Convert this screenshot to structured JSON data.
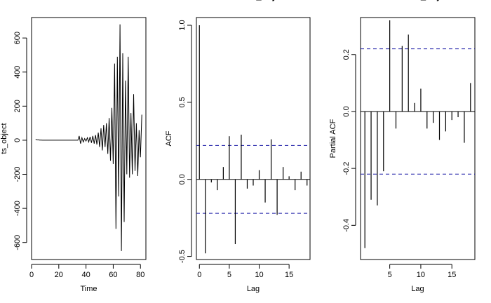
{
  "chart_data": [
    {
      "type": "line",
      "title": "",
      "xlabel": "Time",
      "ylabel": "ts_object",
      "xlim": [
        0,
        84
      ],
      "ylim": [
        -700,
        720
      ],
      "x_ticks": [
        0,
        20,
        40,
        60,
        80
      ],
      "y_ticks": [
        -600,
        -400,
        -200,
        0,
        200,
        400,
        600
      ],
      "series": [
        {
          "x": [
            3,
            4,
            5,
            6,
            7,
            8,
            9,
            10,
            11,
            12,
            13,
            14,
            15,
            16,
            17,
            18,
            19,
            20,
            21,
            22,
            23,
            24,
            25,
            26,
            27,
            28,
            29,
            30,
            31,
            32,
            33,
            34,
            35,
            36,
            37,
            38,
            39,
            40,
            41,
            42,
            43,
            44,
            45,
            46,
            47,
            48,
            49,
            50,
            51,
            52,
            53,
            54,
            55,
            56,
            57,
            58,
            59,
            60,
            61,
            62,
            63,
            64,
            65,
            66,
            67,
            68,
            69,
            70,
            71,
            72,
            73,
            74,
            75,
            76,
            77,
            78,
            79,
            80,
            81
          ],
          "y": [
            5,
            3,
            2,
            1,
            1,
            0,
            0,
            0,
            0,
            0,
            0,
            0,
            0,
            0,
            0,
            0,
            0,
            0,
            0,
            0,
            0,
            0,
            0,
            0,
            0,
            0,
            0,
            0,
            0,
            0,
            0,
            0,
            25,
            -20,
            15,
            -10,
            10,
            -5,
            15,
            -10,
            20,
            -15,
            25,
            -20,
            30,
            -25,
            45,
            -40,
            70,
            -60,
            90,
            -40,
            100,
            -80,
            130,
            -120,
            190,
            -140,
            450,
            -520,
            490,
            -330,
            680,
            -650,
            510,
            -480,
            350,
            -200,
            490,
            -220,
            160,
            -200,
            270,
            -180,
            100,
            -210,
            60,
            -100,
            150
          ]
        }
      ]
    },
    {
      "type": "bar",
      "title": "Series ts_object",
      "xlabel": "Lag",
      "ylabel": "ACF",
      "xlim": [
        -0.5,
        18.5
      ],
      "ylim": [
        -0.52,
        1.05
      ],
      "x_ticks": [
        0,
        5,
        10,
        15
      ],
      "y_ticks": [
        -0.5,
        0.0,
        0.5,
        1.0
      ],
      "confidence_bound": 0.22,
      "lags": [
        0,
        1,
        2,
        3,
        4,
        5,
        6,
        7,
        8,
        9,
        10,
        11,
        12,
        13,
        14,
        15,
        16,
        17,
        18
      ],
      "values": [
        1.0,
        -0.48,
        -0.02,
        -0.07,
        0.08,
        0.28,
        -0.42,
        0.29,
        -0.06,
        -0.04,
        0.06,
        -0.15,
        0.26,
        -0.23,
        0.08,
        0.02,
        -0.07,
        0.05,
        -0.04
      ]
    },
    {
      "type": "bar",
      "title": "Series ts_object",
      "xlabel": "Lag",
      "ylabel": "Partial ACF",
      "xlim": [
        0.3,
        18.7
      ],
      "ylim": [
        -0.52,
        0.33
      ],
      "x_ticks": [
        5,
        10,
        15
      ],
      "y_ticks": [
        -0.4,
        -0.2,
        0.0,
        0.2
      ],
      "confidence_bound": 0.22,
      "lags": [
        1,
        2,
        3,
        4,
        5,
        6,
        7,
        8,
        9,
        10,
        11,
        12,
        13,
        14,
        15,
        16,
        17,
        18
      ],
      "values": [
        -0.48,
        -0.31,
        -0.33,
        -0.21,
        0.32,
        -0.06,
        0.23,
        0.27,
        0.03,
        0.08,
        -0.06,
        -0.04,
        -0.1,
        -0.07,
        -0.03,
        -0.02,
        -0.11,
        0.1
      ]
    }
  ],
  "colors": {
    "axis": "#000000",
    "confidence_line": "#1a1aa6"
  }
}
